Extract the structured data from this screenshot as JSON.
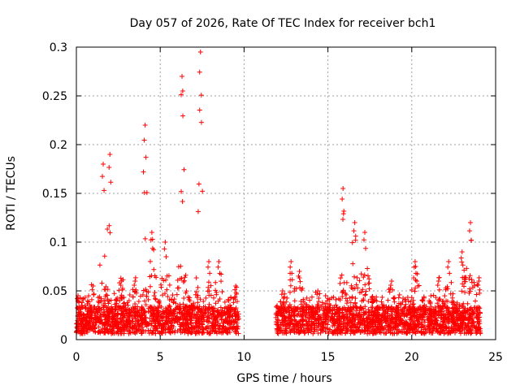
{
  "chart_data": {
    "type": "scatter",
    "title": "Day 057 of 2026, Rate Of TEC Index for receiver bch1",
    "xlabel": "GPS time / hours",
    "ylabel": "ROTI / TECUs",
    "xlim": [
      0,
      25
    ],
    "ylim": [
      0,
      0.3
    ],
    "xticks": [
      0,
      5,
      10,
      15,
      20,
      25
    ],
    "xtick_labels": [
      "0",
      "5",
      "10",
      "15",
      "20",
      "25"
    ],
    "yticks": [
      0,
      0.05,
      0.1,
      0.15,
      0.2,
      0.25,
      0.3
    ],
    "ytick_labels": [
      "0",
      "0.05",
      "0.1",
      "0.15",
      "0.2",
      "0.25",
      "0.3"
    ],
    "grid": true,
    "marker": "+",
    "color": "#ff0000",
    "series": [
      {
        "data_windows_hours": [
          [
            0.0,
            9.7
          ],
          [
            11.9,
            24.1
          ]
        ],
        "peaks": [
          {
            "x": 0.1,
            "y": 0.045
          },
          {
            "x": 1.0,
            "y": 0.055
          },
          {
            "x": 1.6,
            "y": 0.18
          },
          {
            "x": 2.0,
            "y": 0.19
          },
          {
            "x": 2.7,
            "y": 0.06
          },
          {
            "x": 3.5,
            "y": 0.06
          },
          {
            "x": 4.1,
            "y": 0.22
          },
          {
            "x": 4.5,
            "y": 0.11
          },
          {
            "x": 5.3,
            "y": 0.1
          },
          {
            "x": 6.3,
            "y": 0.27
          },
          {
            "x": 7.4,
            "y": 0.295
          },
          {
            "x": 7.9,
            "y": 0.08
          },
          {
            "x": 8.5,
            "y": 0.08
          },
          {
            "x": 9.5,
            "y": 0.055
          },
          {
            "x": 12.3,
            "y": 0.05
          },
          {
            "x": 12.8,
            "y": 0.08
          },
          {
            "x": 13.3,
            "y": 0.07
          },
          {
            "x": 14.4,
            "y": 0.05
          },
          {
            "x": 15.9,
            "y": 0.155
          },
          {
            "x": 16.6,
            "y": 0.12
          },
          {
            "x": 17.2,
            "y": 0.11
          },
          {
            "x": 18.8,
            "y": 0.06
          },
          {
            "x": 20.2,
            "y": 0.08
          },
          {
            "x": 21.6,
            "y": 0.06
          },
          {
            "x": 22.2,
            "y": 0.08
          },
          {
            "x": 23.0,
            "y": 0.09
          },
          {
            "x": 23.5,
            "y": 0.12
          },
          {
            "x": 24.0,
            "y": 0.06
          }
        ]
      }
    ]
  }
}
